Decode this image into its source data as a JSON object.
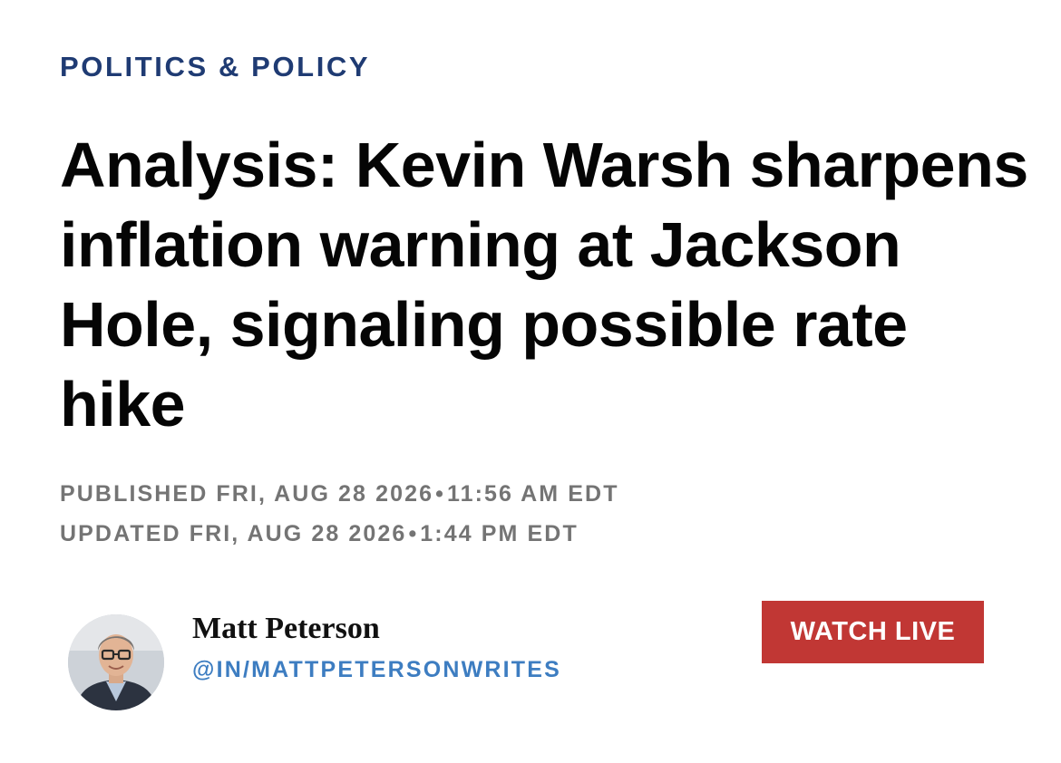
{
  "section": {
    "label": "POLITICS & POLICY"
  },
  "article": {
    "headline": "Analysis: Kevin Warsh sharpens inflation warning at Jackson Hole, signaling possible rate hike",
    "published": {
      "prefix": "PUBLISHED FRI, AUG 28 2026",
      "time": "11:56 AM EDT"
    },
    "updated": {
      "prefix": "UPDATED FRI, AUG 28 2026",
      "time": "1:44 PM EDT"
    },
    "separator": "•"
  },
  "author": {
    "name": "Matt Peterson",
    "handle": "@IN/MATTPETERSONWRITES",
    "avatar_icon": "author-photo"
  },
  "actions": {
    "watch_live_label": "WATCH LIVE",
    "watch_live_color": "#c13734"
  },
  "colors": {
    "section_label": "#1f3b73",
    "headline": "#050505",
    "meta": "#747474",
    "handle": "#3d7dc1"
  }
}
